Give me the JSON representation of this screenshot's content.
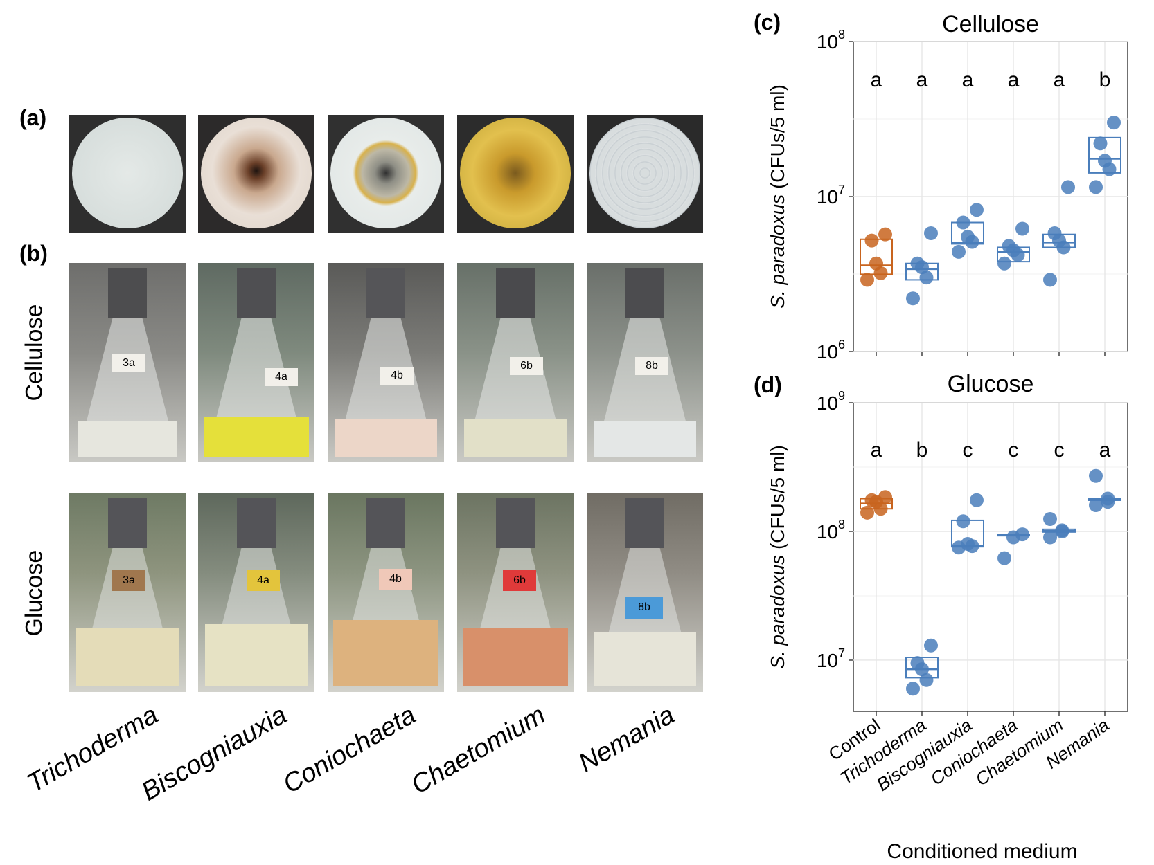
{
  "panel_labels": {
    "a": "(a)",
    "b": "(b)",
    "c": "(c)",
    "d": "(d)"
  },
  "row_labels": {
    "cellulose": "Cellulose",
    "glucose": "Glucose"
  },
  "genera": [
    "Trichoderma",
    "Biscogniauxia",
    "Coniochaeta",
    "Chaetomium",
    "Nemania"
  ],
  "flask_labels": {
    "cellulose": [
      "3a",
      "4a",
      "4b",
      "6b",
      "8b"
    ],
    "glucose": [
      "3a",
      "4a",
      "4b",
      "6b",
      "8b"
    ]
  },
  "colors": {
    "control": "#c8641e",
    "treatment": "#4a7ebb",
    "grid": "#e6e6e6",
    "axis": "#333333"
  },
  "chart_data": [
    {
      "type": "box",
      "title": "Cellulose",
      "ylabel_italic": "S. paradoxus",
      "ylabel_rest": "(CFUs/5 ml)",
      "y_scale": "log",
      "ylim": [
        1000000,
        100000000
      ],
      "y_ticks": [
        {
          "base": "10",
          "exp": "6",
          "value": 1000000
        },
        {
          "base": "10",
          "exp": "7",
          "value": 10000000
        },
        {
          "base": "10",
          "exp": "8",
          "value": 100000000
        }
      ],
      "categories": [
        "Control",
        "Trichoderma",
        "Biscogniauxia",
        "Coniochaeta",
        "Chaetomium",
        "Nemania"
      ],
      "letters": [
        "a",
        "a",
        "a",
        "a",
        "a",
        "b"
      ],
      "boxes": [
        {
          "q1": 3150000,
          "median": 3600000,
          "q3": 5300000
        },
        {
          "q1": 2900000,
          "median": 3400000,
          "q3": 3700000
        },
        {
          "q1": 4950000,
          "median": 5050000,
          "q3": 6800000
        },
        {
          "q1": 3800000,
          "median": 4400000,
          "q3": 4700000
        },
        {
          "q1": 4700000,
          "median": 5050000,
          "q3": 5700000
        },
        {
          "q1": 14200000,
          "median": 17500000,
          "q3": 24000000
        }
      ],
      "points": [
        [
          2900000,
          3200000,
          3700000,
          5200000,
          5700000
        ],
        [
          2200000,
          3000000,
          3500000,
          3700000,
          5800000
        ],
        [
          4400000,
          5100000,
          5500000,
          6800000,
          8200000
        ],
        [
          3700000,
          4200000,
          4500000,
          4800000,
          6200000
        ],
        [
          2900000,
          4700000,
          5200000,
          5800000,
          11500000
        ],
        [
          11500000,
          15000000,
          17000000,
          22000000,
          30000000
        ]
      ]
    },
    {
      "type": "box",
      "title": "Glucose",
      "ylabel_italic": "S. paradoxus",
      "ylabel_rest": "(CFUs/5 ml)",
      "xlabel": "Conditioned medium",
      "y_scale": "log",
      "ylim": [
        4000000,
        1000000000
      ],
      "y_ticks": [
        {
          "base": "10",
          "exp": "7",
          "value": 10000000
        },
        {
          "base": "10",
          "exp": "8",
          "value": 100000000
        },
        {
          "base": "10",
          "exp": "9",
          "value": 1000000000
        }
      ],
      "categories": [
        "Control",
        "Trichoderma",
        "Biscogniauxia",
        "Coniochaeta",
        "Chaetomium",
        "Nemania"
      ],
      "letters": [
        "a",
        "b",
        "c",
        "c",
        "c",
        "a"
      ],
      "boxes": [
        {
          "q1": 150000000,
          "median": 165000000,
          "q3": 180000000
        },
        {
          "q1": 7300000,
          "median": 8500000,
          "q3": 10500000
        },
        {
          "q1": 76000000,
          "median": 77000000,
          "q3": 122000000
        },
        {
          "q1": 93000000,
          "median": 94000000,
          "q3": 95000000
        },
        {
          "q1": 99000000,
          "median": 101000000,
          "q3": 104000000
        },
        {
          "q1": 177000000,
          "median": 178000000,
          "q3": 179000000
        }
      ],
      "points": [
        [
          140000000,
          150000000,
          170000000,
          175000000,
          185000000
        ],
        [
          6000000,
          7000000,
          8500000,
          9500000,
          13000000
        ],
        [
          75000000,
          77000000,
          80000000,
          120000000,
          175000000
        ],
        [
          62000000,
          90000000,
          95000000
        ],
        [
          90000000,
          100000000,
          102000000,
          125000000
        ],
        [
          160000000,
          170000000,
          180000000,
          270000000
        ]
      ]
    }
  ]
}
